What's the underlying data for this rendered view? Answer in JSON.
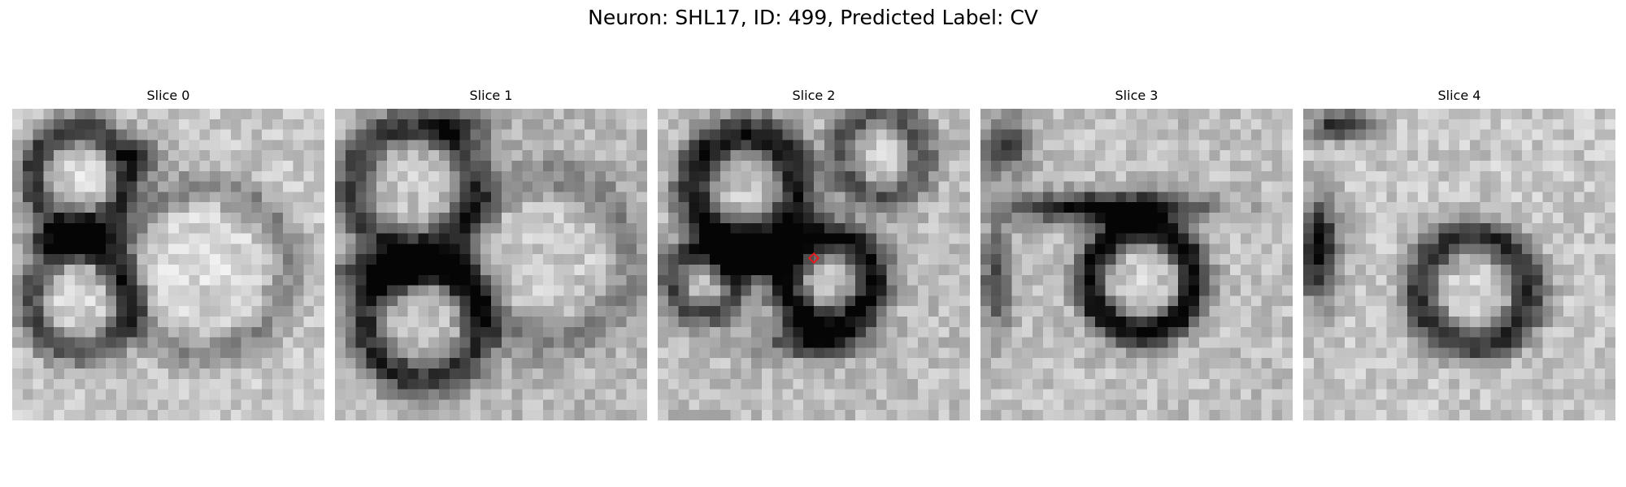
{
  "figure": {
    "title": "Neuron: SHL17, ID: 499, Predicted Label: CV"
  },
  "slices": [
    {
      "title": "Slice 0"
    },
    {
      "title": "Slice 1"
    },
    {
      "title": "Slice 2"
    },
    {
      "title": "Slice 3"
    },
    {
      "title": "Slice 4"
    }
  ],
  "colors": {
    "marker": "#e31a1c",
    "colormap": "grayscale"
  }
}
